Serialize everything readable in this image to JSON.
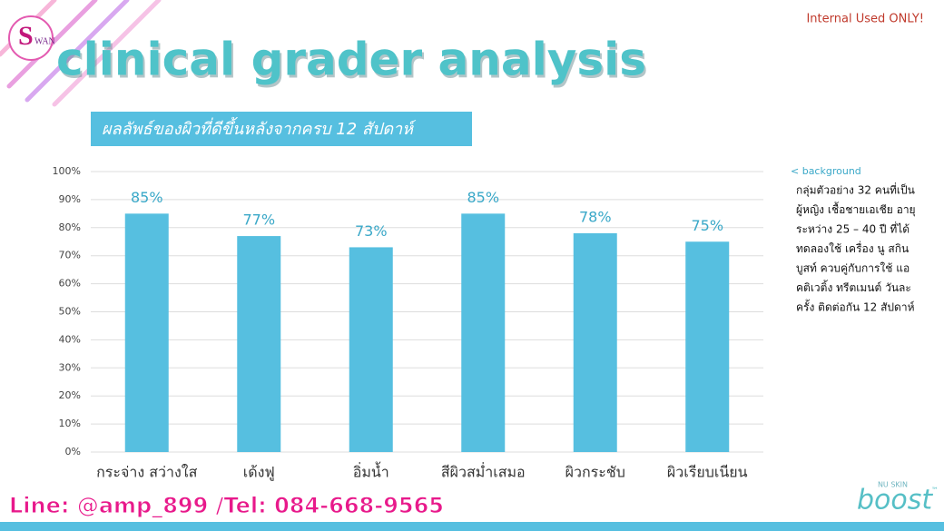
{
  "header": {
    "notice": "Internal Used ONLY!",
    "logo_initial": "S",
    "logo_text": "WAN",
    "title": "clinical grader analysis",
    "subtitle": "ผลลัพธ์ของผิวที่ดีขึ้นหลังจากครบ 12 สัปดาห์"
  },
  "chart_data": {
    "type": "bar",
    "categories": [
      "กระจ่าง สว่างใส",
      "เด้งฟู",
      "อิ่มน้ำ",
      "สีผิวสม่ำเสมอ",
      "ผิวกระชับ",
      "ผิวเรียบเนียน"
    ],
    "values": [
      85,
      77,
      73,
      85,
      78,
      75
    ],
    "value_labels": [
      "85%",
      "77%",
      "73%",
      "85%",
      "78%",
      "75%"
    ],
    "color": "#56bfe0",
    "ylim": [
      0,
      100
    ],
    "yticks": [
      {
        "value": 0,
        "label": "0%"
      },
      {
        "value": 10,
        "label": "10%"
      },
      {
        "value": 20,
        "label": "20%"
      },
      {
        "value": 30,
        "label": "30%"
      },
      {
        "value": 40,
        "label": "40%"
      },
      {
        "value": 50,
        "label": "50%"
      },
      {
        "value": 60,
        "label": "60%"
      },
      {
        "value": 70,
        "label": "70%"
      },
      {
        "value": 80,
        "label": "80%"
      },
      {
        "value": 90,
        "label": "90%"
      },
      {
        "value": 100,
        "label": "100%"
      }
    ],
    "grid": true
  },
  "background": {
    "heading": "< background",
    "lines": [
      "กลุ่มตัวอย่าง 32 คนที่เป็น",
      "ผู้หญิง เชื้อชายเอเชีย อายุ",
      "ระหว่าง 25 – 40 ปี ที่ได้",
      "ทดลองใช้ เครื่อง นู สกิน",
      "บูสท์ ควบคู่กับการใช้ แอ",
      "คติเวติ้ง ทรีตเมนต์ วันละ",
      "ครั้ง ติดต่อกัน 12 สัปดาห์"
    ]
  },
  "footer": {
    "contact": "Line: @amp_899 /Tel: 084-668-9565",
    "brand_small": "NU SKIN",
    "brand": "boost",
    "trademark": "™"
  }
}
